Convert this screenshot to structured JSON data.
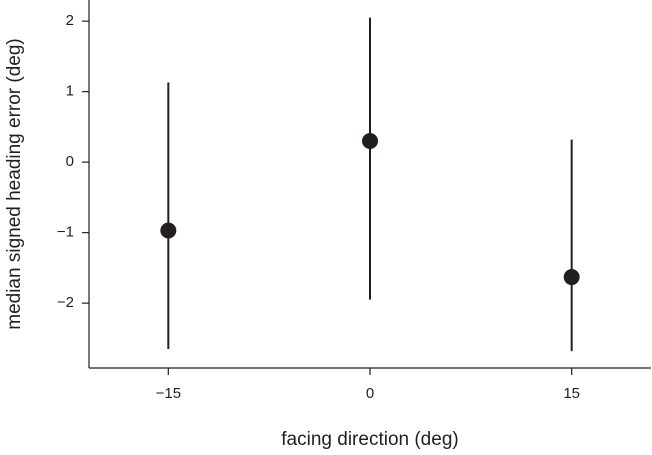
{
  "chart_data": {
    "type": "errorbar",
    "x_label": "facing direction (deg)",
    "y_label": "median signed heading error (deg)",
    "x": [
      -15,
      0,
      15
    ],
    "values": [
      -0.97,
      0.3,
      -1.63
    ],
    "lower": [
      -2.65,
      -1.95,
      -2.68
    ],
    "upper": [
      1.13,
      2.05,
      0.32
    ],
    "color": "#231f20",
    "xlim": [
      -20.9,
      20.9
    ],
    "ylim": [
      -2.92,
      2.3
    ],
    "xticks": [
      {
        "value": -15,
        "label": "−15"
      },
      0,
      15
    ],
    "yticks": [
      {
        "value": -2,
        "label": "−2"
      },
      {
        "value": -1,
        "label": "−1"
      },
      0,
      1,
      2
    ]
  }
}
